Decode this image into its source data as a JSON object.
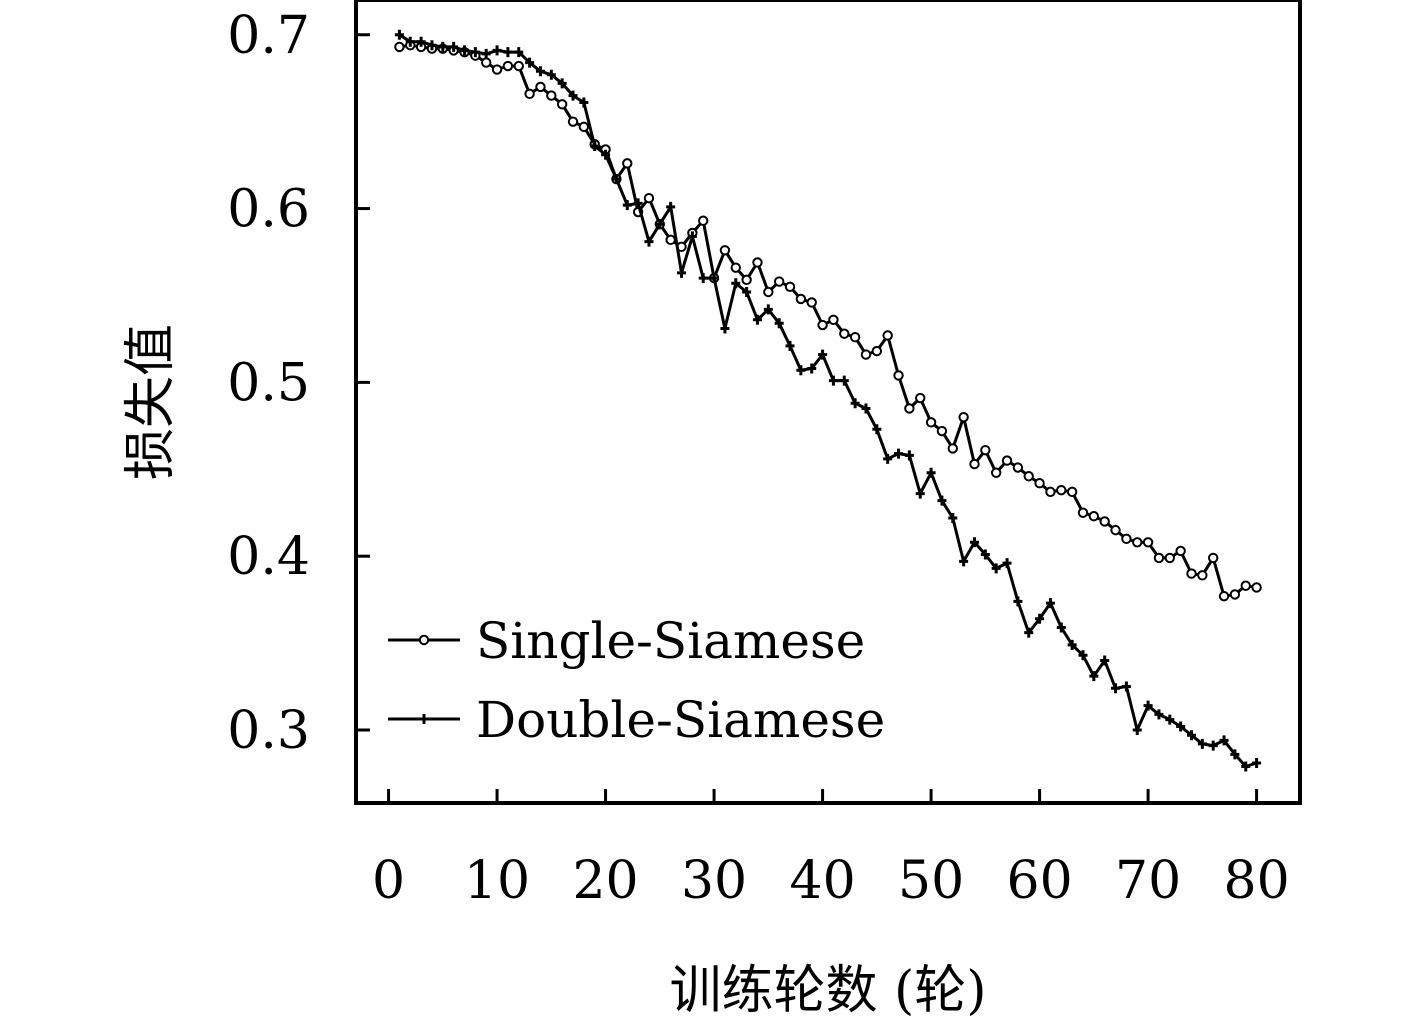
{
  "chart_data": {
    "type": "line",
    "xlabel": "训练轮数 (轮)",
    "ylabel": "损失值",
    "xlim": [
      -3,
      84
    ],
    "ylim": [
      0.258,
      0.72
    ],
    "x_ticks": [
      0,
      10,
      20,
      30,
      40,
      50,
      60,
      70,
      80
    ],
    "x_tick_labels": [
      "0",
      "10",
      "20",
      "30",
      "40",
      "50",
      "60",
      "70",
      "80"
    ],
    "y_ticks": [
      0.3,
      0.4,
      0.5,
      0.6,
      0.7
    ],
    "y_tick_labels": [
      "0.3",
      "0.4",
      "0.5",
      "0.6",
      "0.7"
    ],
    "grid": false,
    "legend_position": "lower-left",
    "x": [
      1,
      2,
      3,
      4,
      5,
      6,
      7,
      8,
      9,
      10,
      11,
      12,
      13,
      14,
      15,
      16,
      17,
      18,
      19,
      20,
      21,
      22,
      23,
      24,
      25,
      26,
      27,
      28,
      29,
      30,
      31,
      32,
      33,
      34,
      35,
      36,
      37,
      38,
      39,
      40,
      41,
      42,
      43,
      44,
      45,
      46,
      47,
      48,
      49,
      50,
      51,
      52,
      53,
      54,
      55,
      56,
      57,
      58,
      59,
      60,
      61,
      62,
      63,
      64,
      65,
      66,
      67,
      68,
      69,
      70,
      71,
      72,
      73,
      74,
      75,
      76,
      77,
      78,
      79,
      80
    ],
    "series": [
      {
        "name": "Single-Siamese",
        "marker": "circle",
        "color": "#000000",
        "values": [
          0.693,
          0.694,
          0.693,
          0.692,
          0.692,
          0.691,
          0.69,
          0.688,
          0.684,
          0.68,
          0.682,
          0.682,
          0.666,
          0.67,
          0.665,
          0.66,
          0.65,
          0.647,
          0.637,
          0.634,
          0.617,
          0.626,
          0.598,
          0.606,
          0.591,
          0.582,
          0.578,
          0.586,
          0.593,
          0.56,
          0.576,
          0.566,
          0.559,
          0.569,
          0.552,
          0.558,
          0.555,
          0.548,
          0.546,
          0.533,
          0.536,
          0.528,
          0.526,
          0.516,
          0.518,
          0.527,
          0.504,
          0.485,
          0.491,
          0.477,
          0.472,
          0.462,
          0.48,
          0.453,
          0.461,
          0.448,
          0.455,
          0.451,
          0.446,
          0.442,
          0.437,
          0.438,
          0.437,
          0.425,
          0.423,
          0.42,
          0.415,
          0.41,
          0.408,
          0.408,
          0.399,
          0.399,
          0.403,
          0.39,
          0.389,
          0.399,
          0.377,
          0.378,
          0.383,
          0.382
        ]
      },
      {
        "name": "Double-Siamese",
        "marker": "plus",
        "color": "#000000",
        "values": [
          0.7,
          0.696,
          0.696,
          0.694,
          0.693,
          0.693,
          0.691,
          0.69,
          0.689,
          0.691,
          0.69,
          0.69,
          0.684,
          0.679,
          0.677,
          0.672,
          0.665,
          0.661,
          0.636,
          0.631,
          0.617,
          0.602,
          0.603,
          0.581,
          0.591,
          0.601,
          0.563,
          0.584,
          0.56,
          0.56,
          0.531,
          0.557,
          0.552,
          0.536,
          0.542,
          0.534,
          0.521,
          0.507,
          0.508,
          0.516,
          0.501,
          0.501,
          0.488,
          0.485,
          0.473,
          0.456,
          0.459,
          0.458,
          0.436,
          0.448,
          0.432,
          0.422,
          0.397,
          0.408,
          0.401,
          0.393,
          0.396,
          0.374,
          0.356,
          0.364,
          0.373,
          0.359,
          0.349,
          0.343,
          0.331,
          0.34,
          0.324,
          0.325,
          0.3,
          0.314,
          0.309,
          0.306,
          0.302,
          0.297,
          0.292,
          0.291,
          0.294,
          0.286,
          0.279,
          0.281
        ]
      }
    ]
  }
}
